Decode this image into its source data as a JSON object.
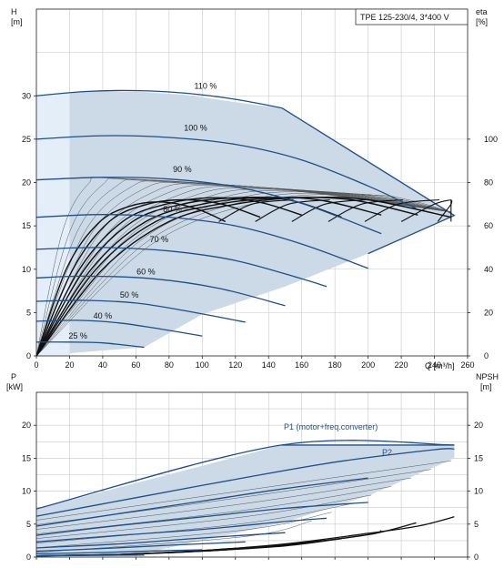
{
  "chart_data": [
    {
      "type": "line",
      "title_box": "TPE 125-230/4, 3*400 V",
      "ylabel_left": "H",
      "ylabel_left_unit": "[m]",
      "ylabel_right": "eta",
      "ylabel_right_unit": "[%]",
      "xlabel": "Q [m³/h]",
      "xlim": [
        0,
        260
      ],
      "x_ticks": [
        0,
        20,
        40,
        60,
        80,
        100,
        120,
        140,
        160,
        180,
        200,
        220,
        240,
        260
      ],
      "ylim_left": [
        0,
        40
      ],
      "y_ticks_left": [
        0,
        5,
        10,
        15,
        20,
        25,
        30
      ],
      "ylim_right": [
        0,
        160
      ],
      "y_ticks_right": [
        0,
        20,
        40,
        60,
        80,
        100
      ],
      "grid": true,
      "envelope_polygon": [
        [
          0,
          30
        ],
        [
          30,
          30.5
        ],
        [
          60,
          30.5
        ],
        [
          90,
          30.1
        ],
        [
          130,
          29
        ],
        [
          148,
          28.6
        ],
        [
          252,
          16.2
        ],
        [
          200,
          11.8
        ],
        [
          150,
          8
        ],
        [
          100,
          4.8
        ],
        [
          65,
          1
        ],
        [
          0,
          0
        ]
      ],
      "speed_curves": [
        {
          "label": "110 %",
          "label_x": 102,
          "label_y": 30.8,
          "points": [
            [
              0,
              30
            ],
            [
              30,
              30.5
            ],
            [
              60,
              30.6
            ],
            [
              90,
              30.3
            ],
            [
              120,
              29.6
            ],
            [
              148,
              28.6
            ]
          ]
        },
        {
          "label": "100 %",
          "label_x": 96,
          "label_y": 26,
          "points": [
            [
              0,
              25
            ],
            [
              40,
              25.4
            ],
            [
              80,
              25.2
            ],
            [
              120,
              24.4
            ],
            [
              160,
              22.6
            ],
            [
              200,
              19.6
            ],
            [
              229,
              17
            ]
          ]
        },
        {
          "label": "90 %",
          "label_x": 88,
          "label_y": 21.2,
          "points": [
            [
              0,
              20.3
            ],
            [
              40,
              20.6
            ],
            [
              80,
              20.4
            ],
            [
              120,
              19.5
            ],
            [
              160,
              17.6
            ],
            [
              208,
              14.1
            ]
          ]
        },
        {
          "label": "80 %",
          "label_x": 82,
          "label_y": 16.6,
          "points": [
            [
              0,
              16
            ],
            [
              40,
              16.3
            ],
            [
              80,
              16
            ],
            [
              120,
              15
            ],
            [
              160,
              12.9
            ],
            [
              200,
              10.1
            ]
          ]
        },
        {
          "label": "70 %",
          "label_x": 74,
          "label_y": 13.1,
          "points": [
            [
              0,
              12.3
            ],
            [
              40,
              12.5
            ],
            [
              80,
              12.1
            ],
            [
              120,
              11
            ],
            [
              160,
              8.9
            ],
            [
              175,
              8
            ]
          ]
        },
        {
          "label": "60 %",
          "label_x": 66,
          "label_y": 9.4,
          "points": [
            [
              0,
              9
            ],
            [
              30,
              9.2
            ],
            [
              70,
              8.9
            ],
            [
              110,
              7.8
            ],
            [
              150,
              5.8
            ]
          ]
        },
        {
          "label": "50 %",
          "label_x": 56,
          "label_y": 6.7,
          "points": [
            [
              0,
              6.3
            ],
            [
              30,
              6.4
            ],
            [
              60,
              6.1
            ],
            [
              90,
              5.2
            ],
            [
              126,
              3.9
            ]
          ]
        },
        {
          "label": "40 %",
          "label_x": 40,
          "label_y": 4.3,
          "points": [
            [
              0,
              4
            ],
            [
              25,
              4.1
            ],
            [
              50,
              3.8
            ],
            [
              75,
              3.1
            ],
            [
              100,
              2.3
            ]
          ]
        },
        {
          "label": "25 %",
          "label_x": 25,
          "label_y": 2,
          "points": [
            [
              0,
              1.6
            ],
            [
              20,
              1.6
            ],
            [
              40,
              1.5
            ],
            [
              65,
              1
            ]
          ]
        }
      ],
      "efficiency_curves_percent": [
        {
          "speed": "110 %",
          "points": [
            [
              0,
              0
            ],
            [
              40,
              40
            ],
            [
              80,
              62
            ],
            [
              120,
              70
            ],
            [
              160,
              73
            ],
            [
              200,
              72
            ],
            [
              250,
              64
            ]
          ]
        },
        {
          "speed": "100 %",
          "points": [
            [
              0,
              0
            ],
            [
              36,
              40
            ],
            [
              72,
              62
            ],
            [
              110,
              70
            ],
            [
              150,
              73
            ],
            [
              190,
              72
            ],
            [
              230,
              65
            ]
          ]
        },
        {
          "speed": "90 %",
          "points": [
            [
              0,
              0
            ],
            [
              33,
              40
            ],
            [
              66,
              62
            ],
            [
              100,
              70
            ],
            [
              135,
              73
            ],
            [
              170,
              72
            ],
            [
              208,
              65
            ]
          ]
        },
        {
          "speed": "80 %",
          "points": [
            [
              0,
              0
            ],
            [
              29,
              40
            ],
            [
              58,
              62
            ],
            [
              88,
              70
            ],
            [
              120,
              73
            ],
            [
              152,
              72
            ],
            [
              184,
              64
            ]
          ]
        },
        {
          "speed": "70 %",
          "points": [
            [
              0,
              0
            ],
            [
              26,
              40
            ],
            [
              52,
              62
            ],
            [
              78,
              70
            ],
            [
              106,
              73
            ],
            [
              134,
              71
            ],
            [
              160,
              65
            ]
          ]
        },
        {
          "speed": "60 %",
          "points": [
            [
              0,
              0
            ],
            [
              22,
              40
            ],
            [
              44,
              62
            ],
            [
              67,
              70
            ],
            [
              90,
              72
            ],
            [
              112,
              70
            ],
            [
              135,
              64
            ]
          ]
        },
        {
          "speed": "50 %",
          "points": [
            [
              0,
              0
            ],
            [
              18,
              40
            ],
            [
              37,
              61
            ],
            [
              56,
              69
            ],
            [
              76,
              71
            ],
            [
              96,
              68
            ],
            [
              114,
              62
            ]
          ]
        }
      ]
    },
    {
      "type": "line",
      "ylabel_left": "P",
      "ylabel_left_unit": "[kW]",
      "ylabel_right": "NPSH",
      "ylabel_right_unit": "[m]",
      "xlim": [
        0,
        260
      ],
      "ylim_left": [
        0,
        25
      ],
      "y_ticks_left": [
        0,
        5,
        10,
        15,
        20
      ],
      "ylim_right": [
        0,
        25
      ],
      "y_ticks_right": [
        0,
        5,
        10,
        15,
        20
      ],
      "grid": true,
      "series_labels": [
        "P1 (motor+freq.converter)",
        "P2"
      ],
      "envelope_polygon": [
        [
          0,
          7.3
        ],
        [
          148,
          17
        ],
        [
          252,
          17
        ],
        [
          252,
          15
        ],
        [
          200,
          9.3
        ],
        [
          150,
          5.3
        ],
        [
          100,
          2.5
        ],
        [
          65,
          0.6
        ],
        [
          0,
          0
        ]
      ],
      "p1_curves": [
        {
          "speed": "110 %",
          "points": [
            [
              0,
              7.3
            ],
            [
              148,
              17
            ],
            [
              252,
              17
            ]
          ]
        },
        {
          "speed": "100 %",
          "points": [
            [
              0,
              6.2
            ],
            [
              60,
              9
            ],
            [
              120,
              11.8
            ],
            [
              180,
              14.4
            ],
            [
              240,
              16.3
            ],
            [
              252,
              16.4
            ]
          ]
        },
        {
          "speed": "90 %",
          "points": [
            [
              0,
              4.7
            ],
            [
              50,
              6.6
            ],
            [
              100,
              8.5
            ],
            [
              150,
              10.4
            ],
            [
              200,
              12
            ]
          ]
        },
        {
          "speed": "80 %",
          "points": [
            [
              0,
              3.3
            ],
            [
              50,
              4.8
            ],
            [
              100,
              6.1
            ],
            [
              150,
              7.4
            ],
            [
              200,
              8.3
            ]
          ]
        },
        {
          "speed": "70 %",
          "points": [
            [
              0,
              2.3
            ],
            [
              50,
              3.3
            ],
            [
              100,
              4.2
            ],
            [
              150,
              5.4
            ],
            [
              175,
              5.9
            ]
          ]
        },
        {
          "speed": "60 %",
          "points": [
            [
              0,
              1.4
            ],
            [
              50,
              2
            ],
            [
              100,
              2.9
            ],
            [
              150,
              3.7
            ]
          ]
        },
        {
          "speed": "50 %",
          "points": [
            [
              0,
              0.9
            ],
            [
              40,
              1.3
            ],
            [
              80,
              1.8
            ],
            [
              126,
              2.3
            ]
          ]
        },
        {
          "speed": "40 %",
          "points": [
            [
              0,
              0.5
            ],
            [
              40,
              0.7
            ],
            [
              80,
              1
            ],
            [
              100,
              1.1
            ]
          ]
        },
        {
          "speed": "25 %",
          "points": [
            [
              0,
              0.2
            ],
            [
              30,
              0.25
            ],
            [
              65,
              0.3
            ]
          ]
        }
      ],
      "npsh_curves": [
        {
          "speed": "110 %",
          "points": [
            [
              0,
              0.2
            ],
            [
              50,
              0.4
            ],
            [
              100,
              1
            ],
            [
              150,
              2
            ],
            [
              200,
              3.6
            ],
            [
              230,
              4.7
            ],
            [
              252,
              6.1
            ]
          ]
        },
        {
          "speed": "100 %",
          "points": [
            [
              0,
              0.2
            ],
            [
              50,
              0.4
            ],
            [
              100,
              1
            ],
            [
              150,
              1.9
            ],
            [
              200,
              3.4
            ],
            [
              229,
              5.2
            ]
          ]
        },
        {
          "speed": "90 %",
          "points": [
            [
              0,
              0.2
            ],
            [
              50,
              0.4
            ],
            [
              100,
              0.9
            ],
            [
              150,
              1.8
            ],
            [
              200,
              3.4
            ],
            [
              208,
              4
            ]
          ]
        },
        {
          "speed": "80 %",
          "points": [
            [
              0,
              0.2
            ],
            [
              50,
              0.4
            ],
            [
              100,
              0.9
            ],
            [
              150,
              1.7
            ],
            [
              184,
              2.8
            ]
          ]
        }
      ]
    }
  ],
  "colors": {
    "envelope_fill": "#ccd9e6",
    "envelope_edge": "#1d4f8a",
    "speed_curve": "#1d4f8a",
    "efficiency_curve": "#111111",
    "thin_curve": "#555555",
    "p1_label": "#1d4f8a",
    "light_band": "#e4eef8"
  }
}
